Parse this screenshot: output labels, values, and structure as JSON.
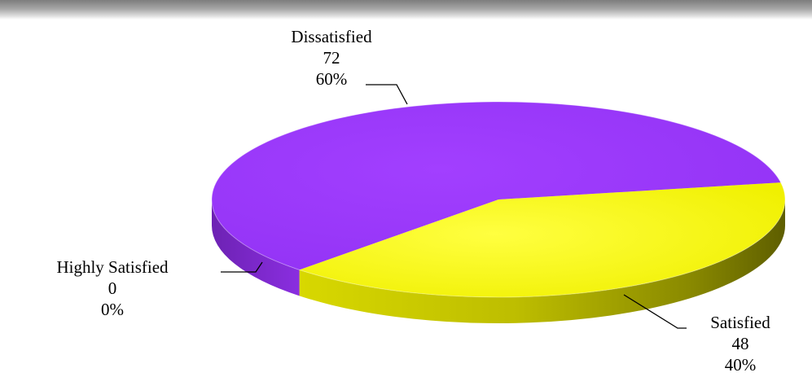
{
  "chart_data": {
    "type": "pie",
    "style": "3d",
    "categories": [
      "Highly Satisfied",
      "Satisfied",
      "Dissatisfied"
    ],
    "values": [
      0,
      48,
      72
    ],
    "percentages": [
      "0%",
      "40%",
      "60%"
    ],
    "colors": [
      "#7f7f7f",
      "#f2f200",
      "#9933ff"
    ],
    "legend": "none",
    "labels": [
      {
        "name": "Highly Satisfied",
        "value": "0",
        "percent": "0%"
      },
      {
        "name": "Satisfied",
        "value": "48",
        "percent": "40%"
      },
      {
        "name": "Dissatisfied",
        "value": "72",
        "percent": "60%"
      }
    ]
  }
}
